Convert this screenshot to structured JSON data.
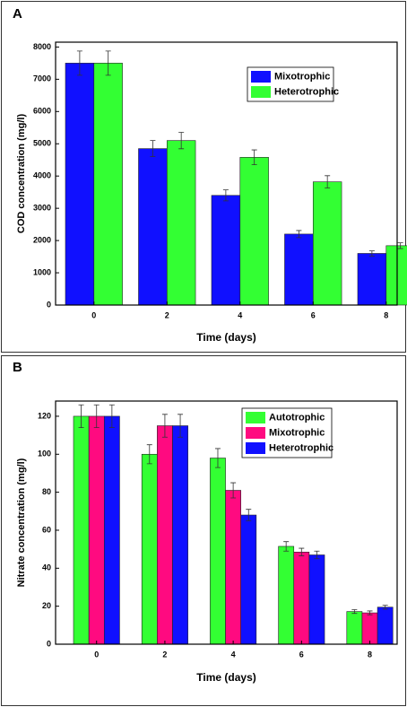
{
  "chart_data": [
    {
      "type": "bar",
      "panel_label": "A",
      "xlabel": "Time (days)",
      "ylabel": "COD concentration (mg/l)",
      "x": [
        0,
        2,
        4,
        6,
        8
      ],
      "xlim": [
        -1.05,
        8.3
      ],
      "xticks": [
        0,
        2,
        4,
        6,
        8
      ],
      "ylim": [
        0,
        8150
      ],
      "yticks": [
        0,
        1000,
        2000,
        3000,
        4000,
        5000,
        6000,
        7000,
        8000
      ],
      "series": [
        {
          "name": "Mixotrophic",
          "color": "#1010ff",
          "values": [
            7500,
            4850,
            3400,
            2200,
            1600
          ],
          "errors": [
            375,
            250,
            170,
            110,
            80
          ]
        },
        {
          "name": "Heterotrophic",
          "color": "#33ff33",
          "values": [
            7500,
            5100,
            4580,
            3820,
            1840
          ],
          "errors": [
            375,
            255,
            230,
            190,
            90
          ]
        }
      ]
    },
    {
      "type": "bar",
      "panel_label": "B",
      "xlabel": "Time (days)",
      "ylabel": "Nitrate concentration (mg/l)",
      "x": [
        0,
        2,
        4,
        6,
        8
      ],
      "xlim": [
        -1.2,
        8.8
      ],
      "xticks": [
        0,
        2,
        4,
        6,
        8
      ],
      "ylim": [
        0,
        128
      ],
      "yticks": [
        0,
        20,
        40,
        60,
        80,
        100,
        120
      ],
      "series": [
        {
          "name": "Autotrophic",
          "color": "#33ff33",
          "values": [
            120,
            100,
            98,
            51.5,
            17.2
          ],
          "errors": [
            6,
            5,
            5,
            2.5,
            1
          ]
        },
        {
          "name": "Mixotrophic",
          "color": "#ff0a80",
          "values": [
            120,
            115,
            81,
            48.5,
            16.5
          ],
          "errors": [
            6,
            6,
            4,
            2,
            1
          ]
        },
        {
          "name": "Heterotrophic",
          "color": "#1010ff",
          "values": [
            120,
            115,
            68,
            47,
            19.5
          ],
          "errors": [
            6,
            6,
            3,
            2,
            1
          ]
        }
      ]
    }
  ]
}
